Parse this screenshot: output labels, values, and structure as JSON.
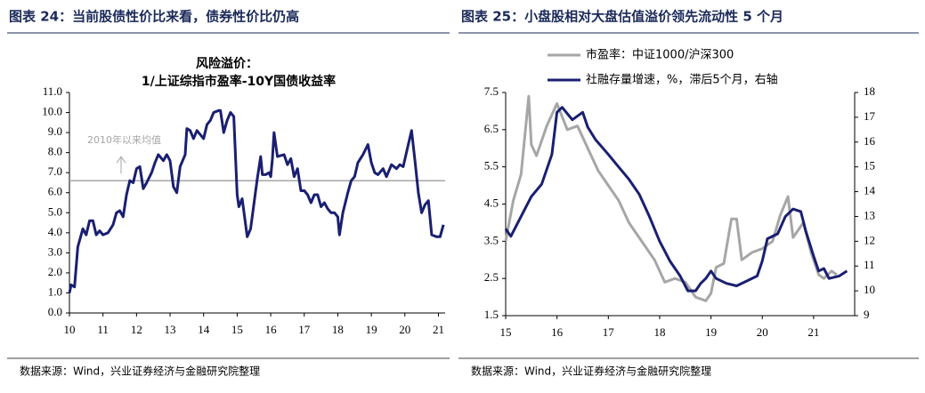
{
  "chart_data": [
    {
      "type": "line",
      "caption": "图表 24：当前股债性价比来看，债券性价比仍高",
      "title": "风险溢价：",
      "subtitle": "1/上证综指市盈率-10Y国债收益率",
      "source": "数据来源：Wind，兴业证券经济与金融研究院整理",
      "xlim": [
        10,
        21.2
      ],
      "xticks": [
        10,
        11,
        12,
        13,
        14,
        15,
        16,
        17,
        18,
        19,
        20,
        21
      ],
      "ylim": [
        0,
        11
      ],
      "yticks": [
        {
          "value": 0,
          "label": "0.0"
        },
        {
          "value": 1,
          "label": "1.0"
        },
        {
          "value": 2,
          "label": "2.0"
        },
        {
          "value": 3,
          "label": "3.0"
        },
        {
          "value": 4,
          "label": "4.0"
        },
        {
          "value": 5,
          "label": "5.0"
        },
        {
          "value": 6,
          "label": "6.0"
        },
        {
          "value": 7,
          "label": "7.0"
        },
        {
          "value": 8,
          "label": "8.0"
        },
        {
          "value": 9,
          "label": "9.0"
        },
        {
          "value": 10,
          "label": "10.0"
        },
        {
          "value": 11,
          "label": "11.0"
        }
      ],
      "reference_line": {
        "value": 6.6,
        "label": "2010年以来均值",
        "color": "#a6a6a6"
      },
      "series": [
        {
          "color": "#1a1f71",
          "x": [
            10.0,
            10.05,
            10.15,
            10.25,
            10.4,
            10.5,
            10.6,
            10.7,
            10.8,
            10.9,
            11.0,
            11.15,
            11.3,
            11.4,
            11.5,
            11.6,
            11.7,
            11.8,
            11.9,
            12.0,
            12.1,
            12.2,
            12.3,
            12.45,
            12.55,
            12.65,
            12.8,
            12.9,
            13.0,
            13.1,
            13.2,
            13.3,
            13.45,
            13.5,
            13.6,
            13.7,
            13.8,
            13.9,
            14.0,
            14.1,
            14.2,
            14.3,
            14.45,
            14.5,
            14.6,
            14.7,
            14.8,
            14.9,
            15.0,
            15.05,
            15.15,
            15.3,
            15.4,
            15.6,
            15.7,
            15.75,
            15.85,
            15.95,
            16.0,
            16.05,
            16.1,
            16.2,
            16.4,
            16.5,
            16.6,
            16.7,
            16.8,
            16.9,
            17.0,
            17.1,
            17.2,
            17.3,
            17.4,
            17.5,
            17.6,
            17.7,
            17.8,
            17.9,
            18.0,
            18.05,
            18.15,
            18.3,
            18.4,
            18.5,
            18.6,
            18.75,
            18.9,
            19.0,
            19.1,
            19.2,
            19.35,
            19.45,
            19.6,
            19.75,
            19.85,
            19.95,
            20.1,
            20.2,
            20.3,
            20.4,
            20.5,
            20.6,
            20.7,
            20.8,
            20.95,
            21.05,
            21.15
          ],
          "values": [
            1.0,
            1.4,
            1.3,
            3.3,
            4.2,
            3.9,
            4.6,
            4.6,
            3.9,
            4.1,
            3.9,
            4.0,
            4.4,
            5.0,
            5.1,
            4.8,
            5.9,
            6.6,
            6.5,
            7.2,
            7.3,
            6.2,
            6.5,
            7.0,
            7.5,
            7.9,
            7.6,
            7.9,
            7.6,
            6.3,
            6.0,
            7.3,
            7.9,
            9.2,
            9.1,
            8.7,
            9.1,
            8.9,
            8.7,
            9.4,
            9.6,
            10.0,
            10.1,
            10.1,
            9.0,
            9.6,
            10.0,
            9.8,
            5.9,
            5.3,
            5.7,
            3.8,
            4.2,
            6.7,
            7.8,
            6.9,
            6.9,
            7.0,
            6.8,
            7.7,
            9.0,
            7.8,
            7.9,
            7.4,
            7.7,
            6.8,
            7.2,
            6.1,
            6.1,
            5.9,
            5.5,
            5.9,
            5.9,
            5.3,
            5.5,
            5.2,
            5.0,
            5.0,
            4.8,
            3.9,
            5.0,
            6.0,
            6.6,
            6.8,
            7.5,
            7.9,
            8.4,
            7.5,
            7.0,
            6.9,
            7.2,
            6.8,
            7.4,
            7.2,
            7.4,
            7.3,
            8.4,
            9.1,
            7.6,
            6.0,
            5.0,
            5.4,
            5.6,
            3.9,
            3.8,
            3.8,
            4.4
          ]
        }
      ]
    },
    {
      "type": "line",
      "caption": "图表 25：小盘股相对大盘估值溢价领先流动性 5 个月",
      "source": "数据来源：Wind，兴业证券经济与金融研究院整理",
      "xlim": [
        15,
        21.8
      ],
      "xticks": [
        15,
        16,
        17,
        18,
        19,
        20,
        21
      ],
      "ylim": [
        1.5,
        7.5
      ],
      "yticks": [
        1.5,
        2.5,
        3.5,
        4.5,
        5.5,
        6.5,
        7.5
      ],
      "y2lim": [
        9,
        18
      ],
      "y2ticks": [
        9,
        10,
        11,
        12,
        13,
        14,
        15,
        16,
        17,
        18
      ],
      "series": [
        {
          "name": "市盈率：中证1000/沪深300",
          "color": "#a6a6a6",
          "x": [
            15.0,
            15.15,
            15.3,
            15.45,
            15.5,
            15.6,
            15.8,
            16.0,
            16.2,
            16.4,
            16.6,
            16.8,
            17.0,
            17.2,
            17.4,
            17.6,
            17.9,
            18.1,
            18.3,
            18.5,
            18.7,
            18.9,
            19.0,
            19.1,
            19.25,
            19.4,
            19.5,
            19.6,
            19.8,
            20.0,
            20.2,
            20.35,
            20.5,
            20.6,
            20.8,
            20.95,
            21.1,
            21.2,
            21.35,
            21.45
          ],
          "values": [
            3.5,
            4.6,
            5.3,
            7.4,
            6.1,
            5.8,
            6.6,
            7.2,
            6.5,
            6.6,
            6.0,
            5.4,
            5.0,
            4.6,
            4.0,
            3.6,
            3.0,
            2.4,
            2.5,
            2.4,
            2.0,
            1.9,
            2.1,
            2.8,
            2.9,
            4.1,
            4.1,
            3.0,
            3.2,
            3.3,
            3.5,
            4.2,
            4.7,
            3.6,
            4.0,
            3.2,
            2.6,
            2.5,
            2.7,
            2.6
          ]
        },
        {
          "name": "社融存量增速，%，滞后5个月，右轴",
          "color": "#1a1f71",
          "axis": "y2",
          "x": [
            15.0,
            15.1,
            15.3,
            15.5,
            15.7,
            15.9,
            16.0,
            16.1,
            16.3,
            16.5,
            16.6,
            16.75,
            17.0,
            17.2,
            17.4,
            17.6,
            17.8,
            18.0,
            18.2,
            18.4,
            18.55,
            18.7,
            18.8,
            18.9,
            19.0,
            19.1,
            19.3,
            19.5,
            19.7,
            19.9,
            20.0,
            20.1,
            20.3,
            20.45,
            20.6,
            20.75,
            20.85,
            21.0,
            21.1,
            21.2,
            21.3,
            21.5,
            21.65
          ],
          "values": [
            12.5,
            12.2,
            13.0,
            13.8,
            14.3,
            15.5,
            17.2,
            17.4,
            16.9,
            17.2,
            16.6,
            16.1,
            15.5,
            15.0,
            14.5,
            13.9,
            13.0,
            12.0,
            11.2,
            10.6,
            10.0,
            10.0,
            10.3,
            10.5,
            10.8,
            10.5,
            10.3,
            10.2,
            10.4,
            10.6,
            11.2,
            12.1,
            12.3,
            13.0,
            13.3,
            13.2,
            12.4,
            11.4,
            10.8,
            10.9,
            10.5,
            10.6,
            10.8
          ]
        }
      ]
    }
  ]
}
